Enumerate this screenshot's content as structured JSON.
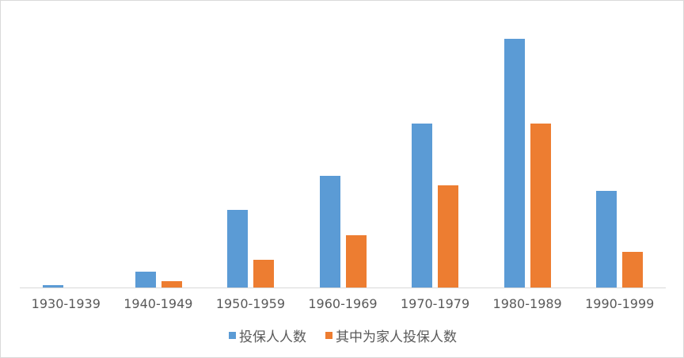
{
  "chart_data": {
    "type": "bar",
    "title": "",
    "xlabel": "",
    "ylabel": "",
    "categories": [
      "1930-1939",
      "1940-1949",
      "1950-1959",
      "1960-1969",
      "1970-1979",
      "1980-1989",
      "1990-1999"
    ],
    "series": [
      {
        "name": "投保人人数",
        "color": "#5b9bd5",
        "values": [
          3,
          20,
          98,
          141,
          207,
          314,
          122
        ]
      },
      {
        "name": "其中为家人投保人数",
        "color": "#ed7d31",
        "values": [
          0,
          8,
          35,
          66,
          129,
          207,
          45
        ]
      }
    ],
    "ylim": [
      0,
      362
    ],
    "grid": false,
    "legend_position": "bottom",
    "note": "No y-axis shown; values are relative bar heights estimated in pixels"
  },
  "legend": {
    "items": [
      {
        "label": "投保人人数",
        "color": "#5b9bd5"
      },
      {
        "label": "其中为家人投保人数",
        "color": "#ed7d31"
      }
    ]
  }
}
